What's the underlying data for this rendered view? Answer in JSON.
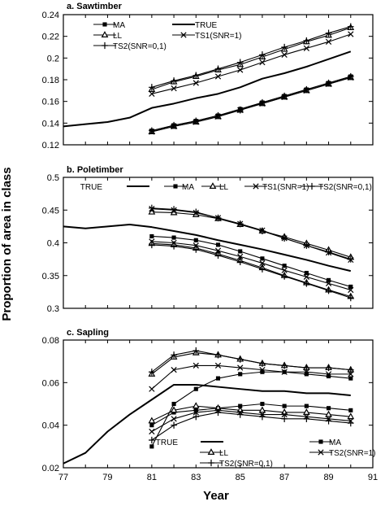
{
  "figure": {
    "ylabel": "Proportion of area in class",
    "xlabel": "Year"
  },
  "chart_data": [
    {
      "type": "line",
      "title": "a. Sawtimber",
      "xlim": [
        77,
        91
      ],
      "ylim": [
        0.12,
        0.24
      ],
      "yticks": [
        0.12,
        0.14,
        0.16,
        0.18,
        0.2,
        0.22,
        0.24
      ],
      "yticklabels": [
        "0.12",
        "0.14",
        "0.16",
        "0.18",
        "0.2",
        "0.22",
        "0.24"
      ],
      "legend_location": "top-left",
      "legend_order": [
        "MA",
        "TRUE",
        "LL",
        "TS1(SNR=1)",
        "TS2(SNR=0,1)"
      ],
      "series": [
        {
          "name": "TRUE",
          "marker": "none",
          "x": [
            77,
            78,
            79,
            80,
            81,
            82,
            83,
            84,
            85,
            86,
            87,
            88,
            89,
            90
          ],
          "y": [
            0.137,
            0.139,
            0.141,
            0.145,
            0.154,
            0.158,
            0.163,
            0.167,
            0.173,
            0.181,
            0.186,
            0.192,
            0.199,
            0.206
          ]
        },
        {
          "name": "MA",
          "marker": "square",
          "x": [
            81,
            82,
            83,
            84,
            85,
            86,
            87,
            88,
            89,
            90
          ],
          "y": [
            0.133,
            0.138,
            0.142,
            0.147,
            0.153,
            0.159,
            0.165,
            0.171,
            0.177,
            0.183
          ]
        },
        {
          "name": "LL",
          "marker": "triangle",
          "x": [
            81,
            82,
            83,
            84,
            85,
            86,
            87,
            88,
            89,
            90
          ],
          "y": [
            0.171,
            0.178,
            0.183,
            0.189,
            0.194,
            0.201,
            0.208,
            0.215,
            0.221,
            0.228
          ]
        },
        {
          "name": "TS1(SNR=1)",
          "marker": "x",
          "x": [
            81,
            82,
            83,
            84,
            85,
            86,
            87,
            88,
            89,
            90
          ],
          "y": [
            0.167,
            0.172,
            0.177,
            0.183,
            0.189,
            0.196,
            0.203,
            0.209,
            0.215,
            0.222
          ]
        },
        {
          "name": "TS2(SNR=0,1)",
          "marker": "plus",
          "x": [
            81,
            82,
            83,
            84,
            85,
            86,
            87,
            88,
            89,
            90
          ],
          "y": [
            0.173,
            0.179,
            0.184,
            0.19,
            0.196,
            0.203,
            0.21,
            0.216,
            0.223,
            0.229
          ]
        },
        {
          "name": "",
          "marker": "triangle",
          "x": [
            81,
            82,
            83,
            84,
            85,
            86,
            87,
            88,
            89,
            90
          ],
          "y": [
            0.132,
            0.137,
            0.141,
            0.146,
            0.152,
            0.158,
            0.164,
            0.17,
            0.176,
            0.182
          ]
        },
        {
          "name": "",
          "marker": "x",
          "x": [
            81,
            82,
            83,
            84,
            85,
            86,
            87,
            88,
            89,
            90
          ],
          "y": [
            0.132,
            0.137,
            0.141,
            0.146,
            0.152,
            0.158,
            0.164,
            0.17,
            0.176,
            0.182
          ]
        },
        {
          "name": "",
          "marker": "plus",
          "x": [
            81,
            82,
            83,
            84,
            85,
            86,
            87,
            88,
            89,
            90
          ],
          "y": [
            0.133,
            0.138,
            0.142,
            0.147,
            0.152,
            0.159,
            0.165,
            0.171,
            0.177,
            0.183
          ]
        }
      ]
    },
    {
      "type": "line",
      "title": "b. Poletimber",
      "xlim": [
        77,
        91
      ],
      "ylim": [
        0.3,
        0.5
      ],
      "yticks": [
        0.3,
        0.35,
        0.4,
        0.45,
        0.5
      ],
      "yticklabels": [
        "0.3",
        "0.35",
        "0.4",
        "0.45",
        "0.5"
      ],
      "legend_location": "top",
      "legend_order": [
        "TRUE",
        "MA",
        "LL",
        "TS1(SNR=1)",
        "TS2(SNR=0,1)"
      ],
      "series": [
        {
          "name": "TRUE",
          "marker": "none",
          "x": [
            77,
            78,
            79,
            80,
            81,
            82,
            83,
            84,
            85,
            86,
            87,
            88,
            89,
            90
          ],
          "y": [
            0.425,
            0.422,
            0.425,
            0.428,
            0.424,
            0.418,
            0.412,
            0.404,
            0.397,
            0.39,
            0.382,
            0.374,
            0.365,
            0.357
          ]
        },
        {
          "name": "MA",
          "marker": "square",
          "x": [
            81,
            82,
            83,
            84,
            85,
            86,
            87,
            88,
            89,
            90
          ],
          "y": [
            0.41,
            0.408,
            0.404,
            0.397,
            0.387,
            0.376,
            0.365,
            0.354,
            0.343,
            0.333
          ]
        },
        {
          "name": "LL",
          "marker": "triangle",
          "x": [
            81,
            82,
            83,
            84,
            85,
            86,
            87,
            88,
            89,
            90
          ],
          "y": [
            0.447,
            0.446,
            0.443,
            0.437,
            0.428,
            0.418,
            0.409,
            0.399,
            0.389,
            0.378
          ]
        },
        {
          "name": "TS1(SNR=1)",
          "marker": "x",
          "x": [
            81,
            82,
            83,
            84,
            85,
            86,
            87,
            88,
            89,
            90
          ],
          "y": [
            0.452,
            0.45,
            0.446,
            0.438,
            0.429,
            0.419,
            0.407,
            0.396,
            0.385,
            0.374
          ]
        },
        {
          "name": "TS2(SNR=0,1)",
          "marker": "plus",
          "x": [
            81,
            82,
            83,
            84,
            85,
            86,
            87,
            88,
            89,
            90
          ],
          "y": [
            0.453,
            0.451,
            0.447,
            0.438,
            0.429,
            0.418,
            0.407,
            0.396,
            0.386,
            0.375
          ]
        },
        {
          "name": "",
          "marker": "x",
          "x": [
            81,
            82,
            83,
            84,
            85,
            86,
            87,
            88,
            89,
            90
          ],
          "y": [
            0.402,
            0.4,
            0.396,
            0.388,
            0.379,
            0.369,
            0.358,
            0.348,
            0.338,
            0.328
          ]
        },
        {
          "name": "",
          "marker": "triangle",
          "x": [
            81,
            82,
            83,
            84,
            85,
            86,
            87,
            88,
            89,
            90
          ],
          "y": [
            0.399,
            0.397,
            0.392,
            0.383,
            0.373,
            0.362,
            0.35,
            0.339,
            0.328,
            0.318
          ]
        },
        {
          "name": "",
          "marker": "plus",
          "x": [
            81,
            82,
            83,
            84,
            85,
            86,
            87,
            88,
            89,
            90
          ],
          "y": [
            0.397,
            0.395,
            0.39,
            0.381,
            0.371,
            0.36,
            0.349,
            0.338,
            0.327,
            0.316
          ]
        }
      ]
    },
    {
      "type": "line",
      "title": "c. Sapling",
      "xlim": [
        77,
        91
      ],
      "ylim": [
        0.02,
        0.08
      ],
      "yticks": [
        0.02,
        0.04,
        0.06,
        0.08
      ],
      "yticklabels": [
        "0.02",
        "0.04",
        "0.06",
        "0.08"
      ],
      "xticks": [
        77,
        79,
        81,
        83,
        85,
        87,
        89,
        91
      ],
      "xticklabels": [
        "77",
        "79",
        "81",
        "83",
        "85",
        "87",
        "89",
        "91"
      ],
      "legend_location": "bottom",
      "legend_order": [
        "TRUE",
        "MA",
        "LL",
        "TS2(SNR=1)",
        "TS2(SNR=0,1)"
      ],
      "series": [
        {
          "name": "TRUE",
          "marker": "none",
          "x": [
            77,
            78,
            79,
            80,
            81,
            82,
            83,
            84,
            85,
            86,
            87,
            88,
            89,
            90
          ],
          "y": [
            0.022,
            0.027,
            0.037,
            0.045,
            0.052,
            0.059,
            0.059,
            0.058,
            0.057,
            0.056,
            0.056,
            0.055,
            0.055,
            0.054
          ]
        },
        {
          "name": "MA",
          "marker": "square",
          "x": [
            81,
            82,
            83,
            84,
            85,
            86,
            87,
            88,
            89,
            90
          ],
          "y": [
            0.03,
            0.05,
            0.057,
            0.062,
            0.064,
            0.065,
            0.065,
            0.064,
            0.063,
            0.062
          ]
        },
        {
          "name": "LL",
          "marker": "triangle",
          "x": [
            81,
            82,
            83,
            84,
            85,
            86,
            87,
            88,
            89,
            90
          ],
          "y": [
            0.064,
            0.072,
            0.074,
            0.073,
            0.071,
            0.069,
            0.068,
            0.067,
            0.067,
            0.066
          ]
        },
        {
          "name": "TS2(SNR=1)",
          "marker": "x",
          "x": [
            81,
            82,
            83,
            84,
            85,
            86,
            87,
            88,
            89,
            90
          ],
          "y": [
            0.057,
            0.066,
            0.068,
            0.068,
            0.067,
            0.066,
            0.065,
            0.065,
            0.064,
            0.064
          ]
        },
        {
          "name": "TS2(SNR=0,1)",
          "marker": "plus",
          "x": [
            81,
            82,
            83,
            84,
            85,
            86,
            87,
            88,
            89,
            90
          ],
          "y": [
            0.065,
            0.073,
            0.075,
            0.073,
            0.071,
            0.069,
            0.068,
            0.067,
            0.067,
            0.066
          ]
        },
        {
          "name": "",
          "marker": "square",
          "x": [
            81,
            82,
            83,
            84,
            85,
            86,
            87,
            88,
            89,
            90
          ],
          "y": [
            0.04,
            0.046,
            0.047,
            0.048,
            0.049,
            0.05,
            0.049,
            0.049,
            0.048,
            0.047
          ]
        },
        {
          "name": "",
          "marker": "triangle",
          "x": [
            81,
            82,
            83,
            84,
            85,
            86,
            87,
            88,
            89,
            90
          ],
          "y": [
            0.042,
            0.047,
            0.049,
            0.048,
            0.047,
            0.047,
            0.046,
            0.046,
            0.045,
            0.044
          ]
        },
        {
          "name": "",
          "marker": "x",
          "x": [
            81,
            82,
            83,
            84,
            85,
            86,
            87,
            88,
            89,
            90
          ],
          "y": [
            0.037,
            0.043,
            0.046,
            0.047,
            0.046,
            0.045,
            0.045,
            0.044,
            0.043,
            0.042
          ]
        },
        {
          "name": "",
          "marker": "plus",
          "x": [
            81,
            82,
            83,
            84,
            85,
            86,
            87,
            88,
            89,
            90
          ],
          "y": [
            0.033,
            0.04,
            0.044,
            0.046,
            0.045,
            0.044,
            0.043,
            0.043,
            0.042,
            0.041
          ]
        }
      ]
    }
  ]
}
